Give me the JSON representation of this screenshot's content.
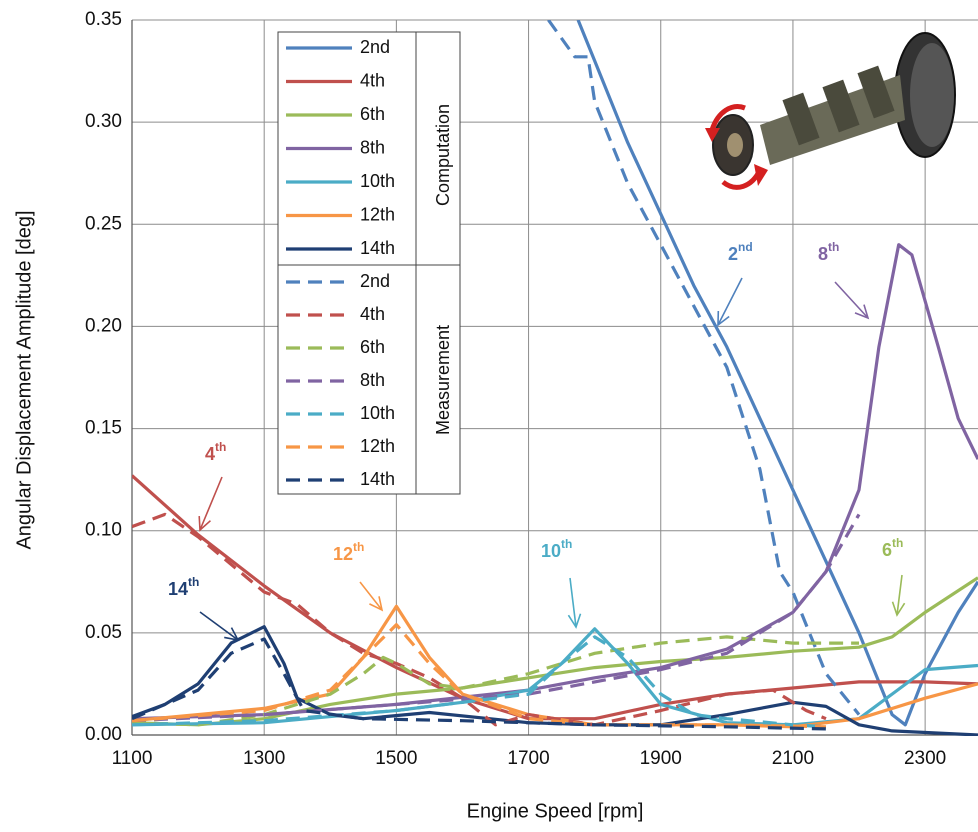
{
  "chart_data": {
    "type": "line",
    "x_label": "Engine Speed [rpm]",
    "y_label": "Angular Displacement Amplitude  [deg]",
    "xlim": [
      1100,
      2380
    ],
    "ylim": [
      0,
      0.35
    ],
    "xticks": [
      1100,
      1300,
      1500,
      1700,
      1900,
      2100,
      2300
    ],
    "yticks": [
      {
        "value": 0,
        "label": "0.00"
      },
      {
        "value": 0.05,
        "label": "0.05"
      },
      {
        "value": 0.1,
        "label": "0.10"
      },
      {
        "value": 0.15,
        "label": "0.15"
      },
      {
        "value": 0.2,
        "label": "0.20"
      },
      {
        "value": 0.25,
        "label": "0.25"
      },
      {
        "value": 0.3,
        "label": "0.30"
      },
      {
        "value": 0.35,
        "label": "0.35"
      }
    ],
    "grid": true,
    "legend_groups": [
      "Computation",
      "Measurement"
    ],
    "series": [
      {
        "name": "2nd",
        "color": "#4f81bd",
        "dashed": false,
        "x": [
          1775,
          1800,
          1850,
          1900,
          1950,
          2000,
          2050,
          2100,
          2150,
          2200,
          2250,
          2270,
          2300,
          2350,
          2380
        ],
        "values": [
          0.35,
          0.33,
          0.29,
          0.255,
          0.22,
          0.19,
          0.155,
          0.12,
          0.085,
          0.05,
          0.01,
          0.005,
          0.03,
          0.06,
          0.075
        ]
      },
      {
        "name": "4th",
        "color": "#c0504d",
        "dashed": false,
        "x": [
          1100,
          1200,
          1300,
          1400,
          1500,
          1600,
          1700,
          1800,
          1900,
          2000,
          2100,
          2200,
          2300,
          2380
        ],
        "values": [
          0.127,
          0.098,
          0.073,
          0.05,
          0.033,
          0.018,
          0.008,
          0.008,
          0.015,
          0.02,
          0.023,
          0.026,
          0.026,
          0.025
        ]
      },
      {
        "name": "6th",
        "color": "#9bbb59",
        "dashed": false,
        "x": [
          1100,
          1200,
          1300,
          1400,
          1500,
          1600,
          1700,
          1800,
          1900,
          2000,
          2100,
          2200,
          2250,
          2300,
          2380
        ],
        "values": [
          0.006,
          0.005,
          0.008,
          0.015,
          0.02,
          0.023,
          0.028,
          0.033,
          0.036,
          0.038,
          0.041,
          0.043,
          0.048,
          0.06,
          0.077
        ]
      },
      {
        "name": "8th",
        "color": "#8064a2",
        "dashed": false,
        "x": [
          1100,
          1300,
          1500,
          1700,
          1800,
          1900,
          2000,
          2100,
          2150,
          2200,
          2230,
          2260,
          2280,
          2320,
          2350,
          2380
        ],
        "values": [
          0.008,
          0.01,
          0.015,
          0.022,
          0.028,
          0.033,
          0.042,
          0.06,
          0.08,
          0.12,
          0.19,
          0.24,
          0.235,
          0.19,
          0.155,
          0.135
        ]
      },
      {
        "name": "10th",
        "color": "#4bacc6",
        "dashed": false,
        "x": [
          1100,
          1300,
          1500,
          1600,
          1700,
          1750,
          1800,
          1850,
          1900,
          2000,
          2100,
          2200,
          2250,
          2300,
          2380
        ],
        "values": [
          0.005,
          0.006,
          0.012,
          0.016,
          0.022,
          0.035,
          0.052,
          0.035,
          0.015,
          0.006,
          0.005,
          0.008,
          0.02,
          0.032,
          0.034
        ]
      },
      {
        "name": "12th",
        "color": "#f79646",
        "dashed": false,
        "x": [
          1100,
          1300,
          1400,
          1450,
          1500,
          1550,
          1600,
          1700,
          1800,
          1900,
          2000,
          2100,
          2200,
          2300,
          2380
        ],
        "values": [
          0.007,
          0.013,
          0.02,
          0.038,
          0.063,
          0.038,
          0.02,
          0.01,
          0.005,
          0.005,
          0.005,
          0.004,
          0.008,
          0.018,
          0.025
        ]
      },
      {
        "name": "14th",
        "color": "#1f3f73",
        "dashed": false,
        "x": [
          1100,
          1150,
          1200,
          1250,
          1300,
          1330,
          1350,
          1400,
          1450,
          1550,
          1700,
          1800,
          1900,
          2000,
          2100,
          2150,
          2200,
          2250,
          2380
        ],
        "values": [
          0.009,
          0.015,
          0.025,
          0.045,
          0.053,
          0.035,
          0.018,
          0.01,
          0.008,
          0.011,
          0.006,
          0.005,
          0.005,
          0.01,
          0.016,
          0.014,
          0.005,
          0.002,
          0
        ]
      },
      {
        "name": "2nd",
        "color": "#4f81bd",
        "dashed": true,
        "x": [
          1730,
          1770,
          1790,
          1800,
          1850,
          1900,
          2000,
          2050,
          2080,
          2100,
          2150,
          2200
        ],
        "values": [
          0.35,
          0.332,
          0.332,
          0.31,
          0.27,
          0.24,
          0.18,
          0.13,
          0.08,
          0.07,
          0.03,
          0.01
        ]
      },
      {
        "name": "4th",
        "color": "#c0504d",
        "dashed": true,
        "x": [
          1100,
          1150,
          1200,
          1300,
          1350,
          1400,
          1450,
          1500,
          1550,
          1600,
          1650,
          1700,
          1800,
          1900,
          2000,
          2070,
          2120,
          2150
        ],
        "values": [
          0.102,
          0.108,
          0.097,
          0.07,
          0.064,
          0.05,
          0.04,
          0.035,
          0.028,
          0.018,
          0.005,
          0.01,
          0.005,
          0.012,
          0.02,
          0.022,
          0.012,
          0.008
        ]
      },
      {
        "name": "6th",
        "color": "#9bbb59",
        "dashed": true,
        "x": [
          1100,
          1200,
          1300,
          1400,
          1450,
          1480,
          1500,
          1550,
          1600,
          1700,
          1800,
          1900,
          2000,
          2100,
          2200
        ],
        "values": [
          0.006,
          0.005,
          0.01,
          0.02,
          0.03,
          0.038,
          0.035,
          0.025,
          0.023,
          0.03,
          0.04,
          0.045,
          0.048,
          0.045,
          0.045
        ]
      },
      {
        "name": "8th",
        "color": "#8064a2",
        "dashed": true,
        "x": [
          1100,
          1300,
          1500,
          1700,
          1800,
          1900,
          2000,
          2100,
          2150,
          2200
        ],
        "values": [
          0.007,
          0.01,
          0.015,
          0.02,
          0.026,
          0.032,
          0.04,
          0.06,
          0.08,
          0.108
        ]
      },
      {
        "name": "10th",
        "color": "#4bacc6",
        "dashed": true,
        "x": [
          1100,
          1300,
          1500,
          1700,
          1750,
          1800,
          1850,
          1900,
          1950,
          2000,
          2100,
          2150
        ],
        "values": [
          0.005,
          0.007,
          0.012,
          0.02,
          0.035,
          0.048,
          0.038,
          0.02,
          0.01,
          0.008,
          0.005,
          0.004
        ]
      },
      {
        "name": "12th",
        "color": "#f79646",
        "dashed": true,
        "x": [
          1100,
          1300,
          1400,
          1450,
          1500,
          1550,
          1600,
          1700,
          1800,
          2000,
          2150
        ],
        "values": [
          0.007,
          0.012,
          0.022,
          0.038,
          0.054,
          0.035,
          0.02,
          0.008,
          0.005,
          0.005,
          0.004
        ]
      },
      {
        "name": "14th",
        "color": "#1f3f73",
        "dashed": true,
        "x": [
          1100,
          1200,
          1250,
          1300,
          1330,
          1360,
          1450,
          1600,
          1800,
          2000,
          2150
        ],
        "values": [
          0.008,
          0.022,
          0.04,
          0.047,
          0.03,
          0.012,
          0.008,
          0.007,
          0.005,
          0.004,
          0.003
        ]
      }
    ],
    "annotations": [
      {
        "text": "2",
        "sup": "nd",
        "color": "#4f81bd"
      },
      {
        "text": "8",
        "sup": "th",
        "color": "#8064a2"
      },
      {
        "text": "4",
        "sup": "th",
        "color": "#c0504d"
      },
      {
        "text": "12",
        "sup": "th",
        "color": "#f79646"
      },
      {
        "text": "10",
        "sup": "th",
        "color": "#4bacc6"
      },
      {
        "text": "14",
        "sup": "th",
        "color": "#1f3f73"
      },
      {
        "text": "6",
        "sup": "th",
        "color": "#9bbb59"
      }
    ]
  }
}
